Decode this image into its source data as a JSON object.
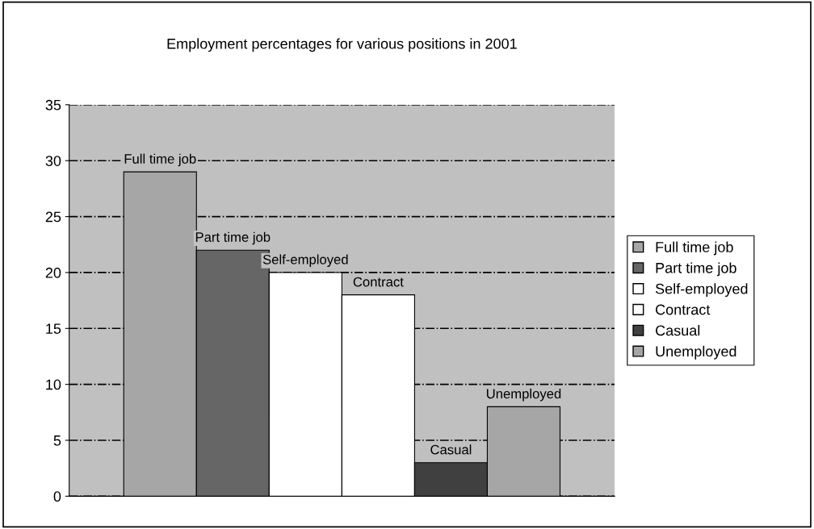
{
  "chart_data": {
    "type": "bar",
    "title": "Employment percentages for various positions in 2001",
    "categories": [
      null
    ],
    "series": [
      {
        "name": "Full time job",
        "color": "#a6a6a6",
        "values": [
          29
        ]
      },
      {
        "name": "Part time job",
        "color": "#666666",
        "values": [
          22
        ]
      },
      {
        "name": "Self-employed",
        "color": "#ffffff",
        "values": [
          20
        ]
      },
      {
        "name": "Contract",
        "color": "#ffffff",
        "values": [
          18
        ]
      },
      {
        "name": "Casual",
        "color": "#404040",
        "values": [
          3
        ]
      },
      {
        "name": "Unemployed",
        "color": "#a6a6a6",
        "values": [
          8
        ]
      }
    ],
    "ylim": [
      0,
      35
    ],
    "yticks": [
      0,
      5,
      10,
      15,
      20,
      25,
      30,
      35
    ],
    "grid": "y",
    "legend": "right"
  }
}
